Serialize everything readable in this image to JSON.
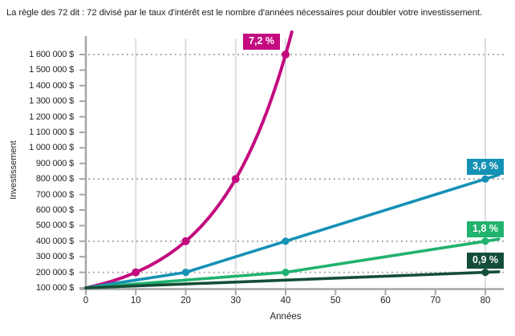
{
  "title": "La règle des 72 dit : 72 divisé par le taux d'intérêt est le nombre d'années nécessaires pour doubler votre investissement.",
  "chart_data": {
    "type": "line",
    "title": "",
    "xlabel": "Années",
    "ylabel": "Investissement",
    "xlim": [
      0,
      83
    ],
    "ylim": [
      100000,
      1600000
    ],
    "x_ticks": [
      0,
      10,
      20,
      30,
      40,
      50,
      60,
      70,
      80
    ],
    "y_ticks": [
      {
        "value": 100000,
        "label": "100 000 $"
      },
      {
        "value": 200000,
        "label": "200 000 $"
      },
      {
        "value": 300000,
        "label": "300 000 $"
      },
      {
        "value": 400000,
        "label": "400 000 $"
      },
      {
        "value": 500000,
        "label": "500 000 $"
      },
      {
        "value": 600000,
        "label": "600 000 $"
      },
      {
        "value": 700000,
        "label": "700 000 $"
      },
      {
        "value": 800000,
        "label": "800 000 $"
      },
      {
        "value": 900000,
        "label": "900 000 $"
      },
      {
        "value": 1000000,
        "label": "1 000 000 $"
      },
      {
        "value": 1100000,
        "label": "1 100 000 $"
      },
      {
        "value": 1200000,
        "label": "1 200 000 $"
      },
      {
        "value": 1300000,
        "label": "1 300 000 $"
      },
      {
        "value": 1400000,
        "label": "1 400 000 $"
      },
      {
        "value": 1500000,
        "label": "1 500 000 $"
      },
      {
        "value": 1600000,
        "label": "1 600 000 $"
      }
    ],
    "vertical_gridline_years": [
      10,
      20,
      30,
      40,
      80
    ],
    "dotted_gridline_values": [
      200000,
      400000,
      800000,
      1600000
    ],
    "series": [
      {
        "name": "7,2 %",
        "rate_percent": 7.2,
        "doubling_years": 10,
        "color": "#c30b7f",
        "curve": "exponential",
        "extend_to_year": 41.3,
        "line_width": 4,
        "points": [
          [
            0,
            100000
          ],
          [
            10,
            200000
          ],
          [
            20,
            400000
          ],
          [
            30,
            800000
          ],
          [
            40,
            1600000
          ]
        ],
        "markers": [
          [
            10,
            200000
          ],
          [
            20,
            400000
          ],
          [
            30,
            800000
          ],
          [
            40,
            1600000
          ]
        ],
        "label": "7,2 %",
        "label_placement": "left-of-last-marker"
      },
      {
        "name": "3,6 %",
        "rate_percent": 3.6,
        "doubling_years": 20,
        "color": "#1591b5",
        "curve": "linear",
        "extend_to_year": 82.7,
        "line_width": 3.6,
        "points": [
          [
            0,
            100000
          ],
          [
            20,
            200000
          ],
          [
            40,
            400000
          ],
          [
            80,
            800000
          ]
        ],
        "markers": [
          [
            20,
            200000
          ],
          [
            40,
            400000
          ],
          [
            80,
            800000
          ]
        ],
        "label": "3,6 %",
        "label_placement": "above-last-marker"
      },
      {
        "name": "1,8 %",
        "rate_percent": 1.8,
        "doubling_years": 40,
        "color": "#20b26e",
        "curve": "linear",
        "extend_to_year": 82.7,
        "line_width": 3.6,
        "points": [
          [
            0,
            100000
          ],
          [
            40,
            200000
          ],
          [
            80,
            400000
          ]
        ],
        "markers": [
          [
            40,
            200000
          ],
          [
            80,
            400000
          ]
        ],
        "label": "1,8 %",
        "label_placement": "above-last-marker"
      },
      {
        "name": "0,9 %",
        "rate_percent": 0.9,
        "doubling_years": 80,
        "color": "#144e38",
        "curve": "linear",
        "extend_to_year": 82.7,
        "line_width": 3.6,
        "points": [
          [
            0,
            100000
          ],
          [
            80,
            200000
          ]
        ],
        "markers": [
          [
            80,
            200000
          ]
        ],
        "label": "0,9 %",
        "label_placement": "above-last-marker"
      }
    ],
    "grid": "partial: vertical lines at doubling years, dotted horizontal lines at doubling values",
    "legend_position": "labels at end of each line"
  },
  "colors": {
    "background": "#ffffff",
    "axis": "#a3a7aa",
    "vertical_grid": "#dcdddd",
    "dotted_grid": "#9b9b9b",
    "text": "#232323",
    "series_label_text": "#ffffff"
  }
}
